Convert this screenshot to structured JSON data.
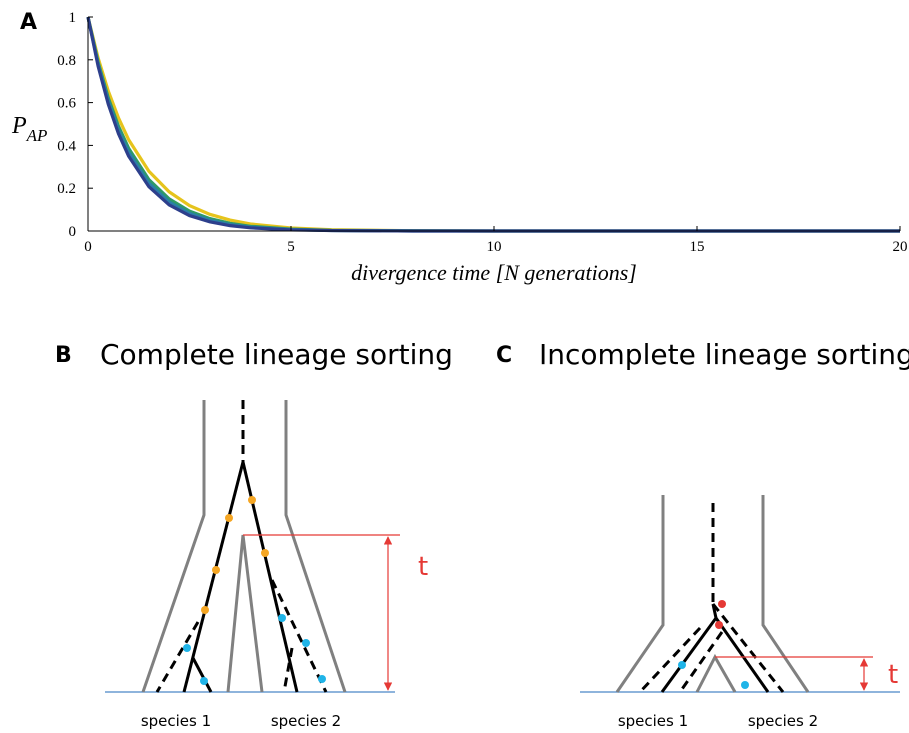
{
  "chart_data": {
    "type": "line",
    "panel": "A",
    "ylabel": {
      "main": "P",
      "sub": "AP"
    },
    "xlabel": "divergence time [N generations]",
    "x": [
      0,
      0.25,
      0.5,
      0.75,
      1,
      1.5,
      2,
      2.5,
      3,
      3.5,
      4,
      5,
      6,
      8,
      10,
      15,
      20
    ],
    "series": [
      {
        "color": "#e6c41c",
        "values": [
          1,
          0.808,
          0.654,
          0.529,
          0.427,
          0.279,
          0.183,
          0.119,
          0.078,
          0.051,
          0.033,
          0.014,
          0.006,
          0.001,
          0,
          0,
          0
        ]
      },
      {
        "color": "#2e9a66",
        "values": [
          1,
          0.789,
          0.622,
          0.49,
          0.387,
          0.24,
          0.15,
          0.093,
          0.058,
          0.036,
          0.022,
          0.009,
          0.003,
          0.001,
          0,
          0,
          0
        ]
      },
      {
        "color": "#2a7ea8",
        "values": [
          1,
          0.779,
          0.607,
          0.472,
          0.368,
          0.223,
          0.135,
          0.082,
          0.05,
          0.03,
          0.018,
          0.007,
          0.002,
          0,
          0,
          0,
          0
        ]
      },
      {
        "color": "#2d3f8c",
        "values": [
          1,
          0.769,
          0.592,
          0.455,
          0.35,
          0.207,
          0.122,
          0.072,
          0.043,
          0.025,
          0.015,
          0.005,
          0.002,
          0,
          0,
          0,
          0
        ]
      }
    ],
    "xlim": [
      0,
      20
    ],
    "xticks": [
      0,
      5,
      10,
      15,
      20
    ],
    "ylim": [
      0,
      1
    ],
    "yticks": [
      0,
      0.2,
      0.4,
      0.6,
      0.8,
      1
    ]
  },
  "panel_b": {
    "label": "B",
    "title": "Complete lineage sorting",
    "species": [
      "species 1",
      "species 2"
    ],
    "time": "t"
  },
  "panel_c": {
    "label": "C",
    "title": "Incomplete lineage sorting",
    "species": [
      "species 1",
      "species 2"
    ],
    "time": "t"
  }
}
